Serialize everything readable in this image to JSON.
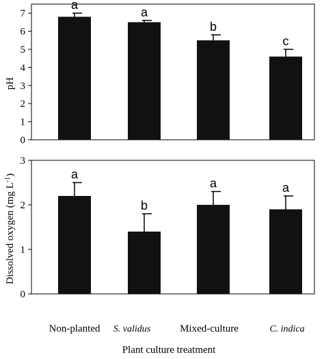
{
  "chart_data": [
    {
      "type": "bar",
      "categories": [
        "Non-planted",
        "S. validus",
        "Mixed-culture",
        "C. indica"
      ],
      "values": [
        6.8,
        6.5,
        5.5,
        4.6
      ],
      "errors": [
        0.2,
        0.1,
        0.3,
        0.4
      ],
      "significance": [
        "a",
        "a",
        "b",
        "c"
      ],
      "ylabel": "pH",
      "ylim": [
        0,
        7.5
      ],
      "yticks": [
        "0",
        "1",
        "2",
        "3",
        "4",
        "5",
        "6",
        "7"
      ],
      "color": "#111111",
      "grid": false
    },
    {
      "type": "bar",
      "categories": [
        "Non-planted",
        "S. validus",
        "Mixed-culture",
        "C. indica"
      ],
      "values": [
        2.2,
        1.4,
        2.0,
        1.9
      ],
      "errors": [
        0.3,
        0.4,
        0.3,
        0.3
      ],
      "significance": [
        "a",
        "b",
        "a",
        "a"
      ],
      "ylabel": "Dissolved oxygen (mg L-1)",
      "ylim": [
        0,
        3
      ],
      "yticks": [
        "0",
        "1",
        "2",
        "3"
      ],
      "color": "#111111",
      "grid": false
    }
  ],
  "xaxis": {
    "tick_labels": [
      "Non-planted",
      "S. validus",
      "Mixed-culture",
      "C. indica"
    ],
    "italic": [
      false,
      true,
      false,
      true
    ],
    "xlabel": "Plant culture treatment"
  },
  "ylabel2_parts": {
    "main": "Dissolved oxygen (mg L",
    "sup": "-1",
    "close": ")"
  }
}
